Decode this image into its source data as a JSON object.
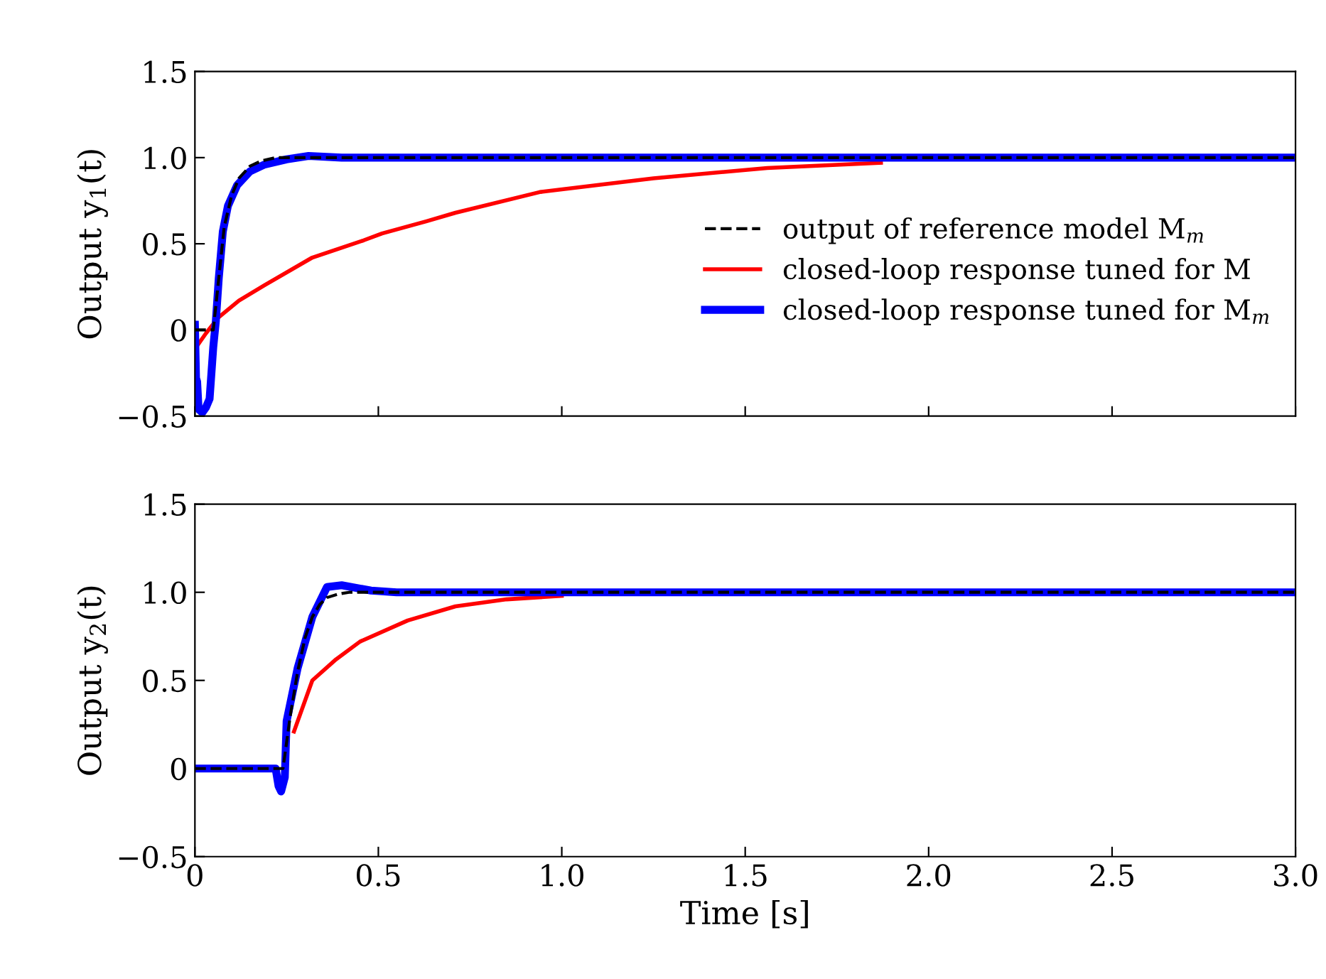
{
  "chart_data": [
    {
      "type": "line",
      "ylabel": "Output y$_{1}$(t)",
      "xlim": [
        0,
        3.0
      ],
      "ylim": [
        -0.5,
        1.5
      ],
      "xticks": [
        {
          "value": 0,
          "label": null
        },
        {
          "value": 0.5,
          "label": null
        },
        {
          "value": 1.0,
          "label": null
        },
        {
          "value": 1.5,
          "label": null
        },
        {
          "value": 2.0,
          "label": null
        },
        {
          "value": 2.5,
          "label": null
        },
        {
          "value": 3.0,
          "label": null
        }
      ],
      "yticks": [
        {
          "value": -0.5,
          "label": "−0.5"
        },
        0,
        {
          "value": 0.5,
          "label": "0.5"
        },
        {
          "value": 1.0,
          "label": "1.0"
        },
        {
          "value": 1.5,
          "label": "1.5"
        }
      ],
      "tick_labels": "y",
      "grid": false,
      "legend": "right",
      "series": [
        {
          "name": "output of reference model M$_{m}$",
          "color": "#000000",
          "line_style": "dashed",
          "x": [
            0,
            0.01,
            0.05,
            0.065,
            0.08,
            0.1,
            0.12,
            0.15,
            0.18,
            0.22,
            0.26,
            0.5,
            1.0,
            2.0,
            3.0
          ],
          "values": [
            0,
            0,
            0,
            0.3,
            0.6,
            0.78,
            0.88,
            0.95,
            0.98,
            1.0,
            1.0,
            1.0,
            1.0,
            1.0,
            1.0
          ]
        },
        {
          "name": "closed-loop response tuned for M",
          "color": "#ff0000",
          "line_style": "solid",
          "x": [
            0.01,
            0.03,
            0.063,
            0.12,
            0.19,
            0.32,
            0.46,
            0.51,
            0.63,
            0.71,
            0.94,
            1.25,
            1.56,
            1.87
          ],
          "values": [
            -0.08,
            -0.02,
            0.07,
            0.17,
            0.26,
            0.42,
            0.52,
            0.56,
            0.63,
            0.68,
            0.8,
            0.88,
            0.94,
            0.97
          ]
        },
        {
          "name": "closed-loop response tuned for M$_{m}$",
          "color": "#0000ff",
          "line_style": "solid",
          "x": [
            0,
            0.003,
            0.006,
            0.01,
            0.02,
            0.03,
            0.04,
            0.05,
            0.057,
            0.065,
            0.076,
            0.09,
            0.115,
            0.15,
            0.19,
            0.25,
            0.31,
            0.4,
            0.5,
            1.0,
            2.0,
            3.0
          ],
          "values": [
            0.03,
            -0.28,
            -0.3,
            -0.46,
            -0.48,
            -0.45,
            -0.4,
            -0.1,
            0.05,
            0.3,
            0.57,
            0.72,
            0.84,
            0.92,
            0.96,
            0.99,
            1.01,
            1.0,
            1.0,
            1.0,
            1.0,
            1.0
          ]
        }
      ]
    },
    {
      "type": "line",
      "ylabel": "Output y$_{2}$(t)",
      "xlabel": "Time [s]",
      "xlim": [
        0,
        3.0
      ],
      "ylim": [
        -0.5,
        1.5
      ],
      "xticks": [
        0,
        {
          "value": 0.5,
          "label": "0.5"
        },
        {
          "value": 1.0,
          "label": "1.0"
        },
        {
          "value": 1.5,
          "label": "1.5"
        },
        {
          "value": 2.0,
          "label": "2.0"
        },
        {
          "value": 2.5,
          "label": "2.5"
        },
        {
          "value": 3.0,
          "label": "3.0"
        }
      ],
      "yticks": [
        {
          "value": -0.5,
          "label": "−0.5"
        },
        0,
        {
          "value": 0.5,
          "label": "0.5"
        },
        {
          "value": 1.0,
          "label": "1.0"
        },
        {
          "value": 1.5,
          "label": "1.5"
        }
      ],
      "grid": false,
      "legend": false,
      "series": [
        {
          "color": "#000000",
          "line_style": "dashed",
          "x": [
            0,
            0.22,
            0.24,
            0.26,
            0.28,
            0.3,
            0.32,
            0.34,
            0.36,
            0.39,
            0.42,
            0.5,
            1.0,
            3.0
          ],
          "values": [
            0,
            0,
            0,
            0.3,
            0.55,
            0.74,
            0.86,
            0.93,
            0.97,
            0.99,
            1.0,
            1.0,
            1.0,
            1.0
          ]
        },
        {
          "color": "#ff0000",
          "line_style": "solid",
          "x": [
            0.27,
            0.32,
            0.385,
            0.45,
            0.58,
            0.71,
            0.85,
            1.0
          ],
          "values": [
            0.21,
            0.5,
            0.62,
            0.72,
            0.84,
            0.92,
            0.96,
            0.98
          ]
        },
        {
          "color": "#0000ff",
          "line_style": "solid",
          "x": [
            0,
            0.22,
            0.228,
            0.235,
            0.245,
            0.25,
            0.28,
            0.32,
            0.36,
            0.4,
            0.48,
            0.55,
            1.0,
            3.0
          ],
          "values": [
            0,
            0,
            -0.1,
            -0.13,
            -0.05,
            0.27,
            0.57,
            0.86,
            1.03,
            1.04,
            1.01,
            1.0,
            1.0,
            1.0
          ]
        }
      ]
    }
  ]
}
